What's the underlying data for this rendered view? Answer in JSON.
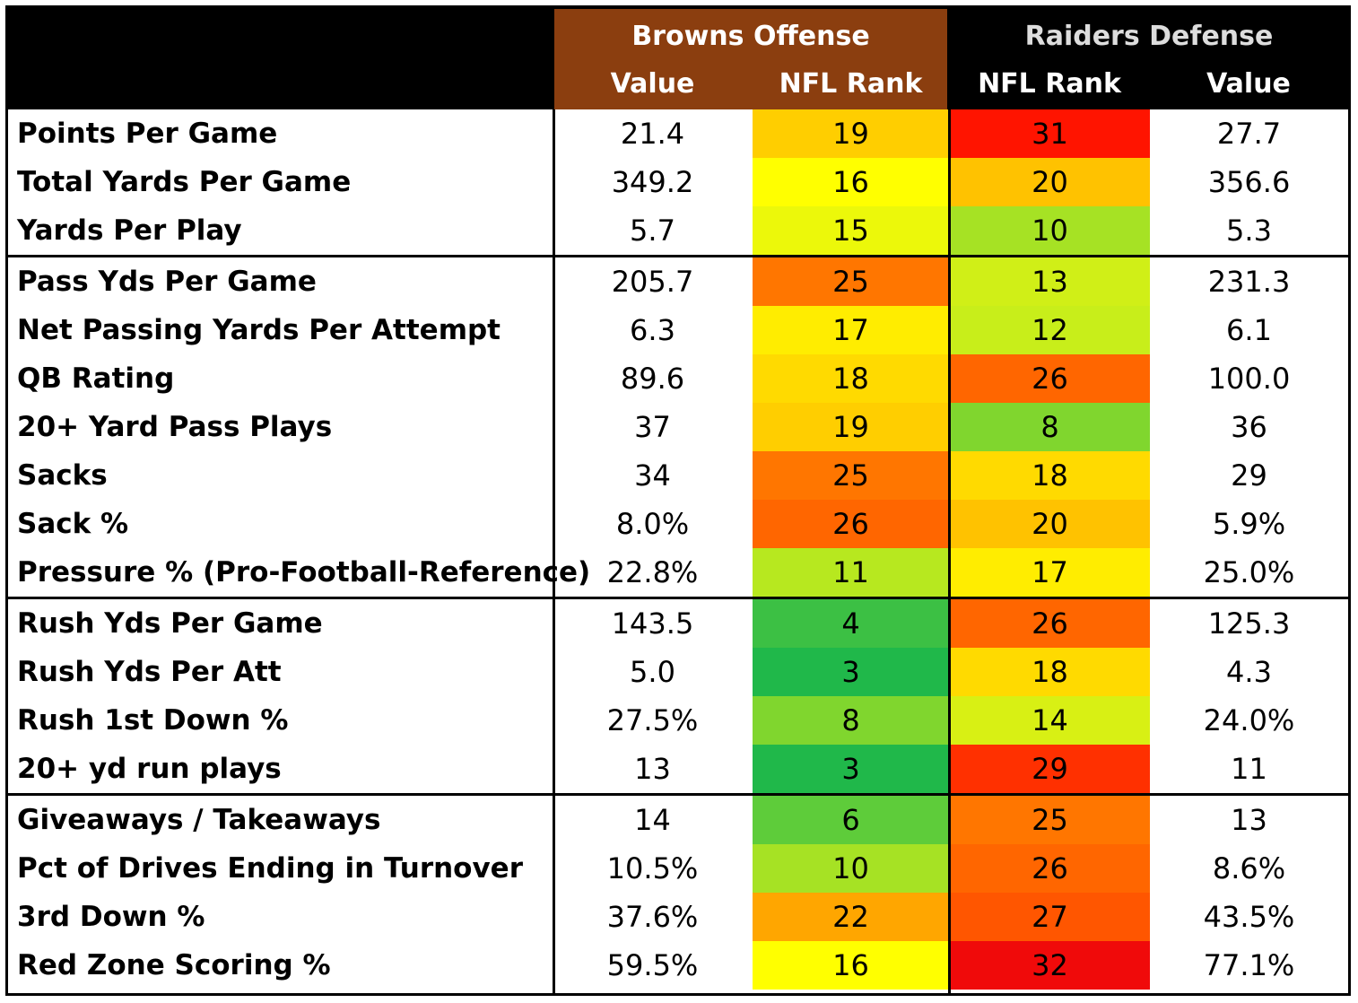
{
  "header": {
    "browns_title": "Browns Offense",
    "raiders_title": "Raiders Defense",
    "browns_value_label": "Value",
    "browns_rank_label": "NFL Rank",
    "raiders_rank_label": "NFL Rank",
    "raiders_value_label": "Value"
  },
  "colors": {
    "header_bg": "#000000",
    "browns_header_bg": "#8B3E0F",
    "header_text": "#ffffff",
    "rank_scale": "1 = dark green, 16 = yellow, 32 = red"
  },
  "chart_data": {
    "type": "table",
    "columns": [
      "",
      "Browns Offense Value",
      "Browns Offense NFL Rank",
      "Raiders Defense NFL Rank",
      "Raiders Defense Value"
    ],
    "groups": [
      {
        "rows": [
          {
            "metric": "Points Per Game",
            "browns_value": "21.4",
            "browns_rank": 19,
            "raiders_rank": 31,
            "raiders_value": "27.7"
          },
          {
            "metric": "Total Yards Per Game",
            "browns_value": "349.2",
            "browns_rank": 16,
            "raiders_rank": 20,
            "raiders_value": "356.6"
          },
          {
            "metric": "Yards Per Play",
            "browns_value": "5.7",
            "browns_rank": 15,
            "raiders_rank": 10,
            "raiders_value": "5.3"
          }
        ]
      },
      {
        "rows": [
          {
            "metric": "Pass Yds Per Game",
            "browns_value": "205.7",
            "browns_rank": 25,
            "raiders_rank": 13,
            "raiders_value": "231.3"
          },
          {
            "metric": "Net Passing Yards Per Attempt",
            "browns_value": "6.3",
            "browns_rank": 17,
            "raiders_rank": 12,
            "raiders_value": "6.1"
          },
          {
            "metric": "QB Rating",
            "browns_value": "89.6",
            "browns_rank": 18,
            "raiders_rank": 26,
            "raiders_value": "100.0"
          },
          {
            "metric": "20+ Yard Pass Plays",
            "browns_value": "37",
            "browns_rank": 19,
            "raiders_rank": 8,
            "raiders_value": "36"
          },
          {
            "metric": "Sacks",
            "browns_value": "34",
            "browns_rank": 25,
            "raiders_rank": 18,
            "raiders_value": "29"
          },
          {
            "metric": "Sack %",
            "browns_value": "8.0%",
            "browns_rank": 26,
            "raiders_rank": 20,
            "raiders_value": "5.9%"
          },
          {
            "metric": "Pressure % (Pro-Football-Reference)",
            "browns_value": "22.8%",
            "browns_rank": 11,
            "raiders_rank": 17,
            "raiders_value": "25.0%"
          }
        ]
      },
      {
        "rows": [
          {
            "metric": "Rush Yds Per Game",
            "browns_value": "143.5",
            "browns_rank": 4,
            "raiders_rank": 26,
            "raiders_value": "125.3"
          },
          {
            "metric": "Rush Yds Per Att",
            "browns_value": "5.0",
            "browns_rank": 3,
            "raiders_rank": 18,
            "raiders_value": "4.3"
          },
          {
            "metric": "Rush 1st Down %",
            "browns_value": "27.5%",
            "browns_rank": 8,
            "raiders_rank": 14,
            "raiders_value": "24.0%"
          },
          {
            "metric": "20+ yd run plays",
            "browns_value": "13",
            "browns_rank": 3,
            "raiders_rank": 29,
            "raiders_value": "11"
          }
        ]
      },
      {
        "rows": [
          {
            "metric": "Giveaways / Takeaways",
            "browns_value": "14",
            "browns_rank": 6,
            "raiders_rank": 25,
            "raiders_value": "13"
          },
          {
            "metric": "Pct of Drives Ending in Turnover",
            "browns_value": "10.5%",
            "browns_rank": 10,
            "raiders_rank": 26,
            "raiders_value": "8.6%"
          },
          {
            "metric": "3rd Down %",
            "browns_value": "37.6%",
            "browns_rank": 22,
            "raiders_rank": 27,
            "raiders_value": "43.5%"
          },
          {
            "metric": "Red Zone Scoring %",
            "browns_value": "59.5%",
            "browns_rank": 16,
            "raiders_rank": 32,
            "raiders_value": "77.1%"
          }
        ]
      }
    ]
  }
}
